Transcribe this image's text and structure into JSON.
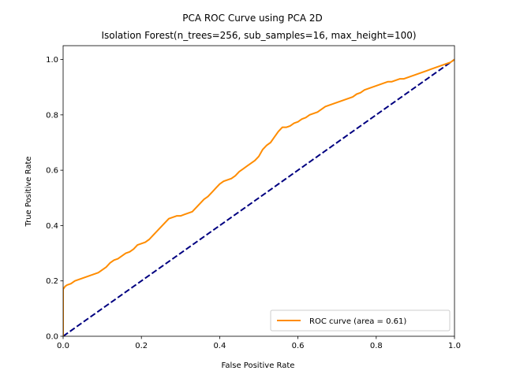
{
  "chart_data": {
    "type": "line",
    "title": "PCA ROC Curve using PCA 2D",
    "subtitle": "Isolation Forest(n_trees=256, sub_samples=16, max_height=100)",
    "xlabel": "False Positive Rate",
    "ylabel": "True Positive Rate",
    "xlim": [
      0,
      1
    ],
    "ylim": [
      0,
      1.05
    ],
    "xticks": [
      "0.0",
      "0.2",
      "0.4",
      "0.6",
      "0.8",
      "1.0"
    ],
    "yticks": [
      "0.0",
      "0.2",
      "0.4",
      "0.6",
      "0.8",
      "1.0"
    ],
    "grid": false,
    "legend_position": "lower right",
    "series": [
      {
        "name": "ROC curve (area = 0.61)",
        "color": "#ff8c00",
        "style": "solid",
        "x": [
          0,
          0,
          0.005,
          0.01,
          0.02,
          0.03,
          0.04,
          0.05,
          0.06,
          0.07,
          0.08,
          0.09,
          0.1,
          0.11,
          0.12,
          0.13,
          0.14,
          0.15,
          0.16,
          0.17,
          0.18,
          0.19,
          0.2,
          0.21,
          0.22,
          0.23,
          0.24,
          0.25,
          0.26,
          0.27,
          0.28,
          0.29,
          0.3,
          0.31,
          0.32,
          0.33,
          0.34,
          0.35,
          0.36,
          0.37,
          0.38,
          0.39,
          0.4,
          0.41,
          0.42,
          0.43,
          0.44,
          0.45,
          0.46,
          0.47,
          0.48,
          0.49,
          0.5,
          0.51,
          0.52,
          0.53,
          0.54,
          0.55,
          0.56,
          0.57,
          0.58,
          0.59,
          0.6,
          0.61,
          0.62,
          0.63,
          0.64,
          0.65,
          0.66,
          0.67,
          0.68,
          0.69,
          0.7,
          0.71,
          0.72,
          0.73,
          0.74,
          0.75,
          0.76,
          0.77,
          0.78,
          0.79,
          0.8,
          0.81,
          0.82,
          0.83,
          0.84,
          0.85,
          0.86,
          0.87,
          0.88,
          0.89,
          0.9,
          0.91,
          0.92,
          0.93,
          0.94,
          0.95,
          0.96,
          0.97,
          0.98,
          0.99,
          1.0
        ],
        "y": [
          0,
          0.17,
          0.18,
          0.185,
          0.19,
          0.2,
          0.205,
          0.21,
          0.215,
          0.22,
          0.225,
          0.23,
          0.24,
          0.25,
          0.265,
          0.275,
          0.28,
          0.29,
          0.3,
          0.305,
          0.315,
          0.33,
          0.335,
          0.34,
          0.35,
          0.365,
          0.38,
          0.395,
          0.41,
          0.425,
          0.43,
          0.435,
          0.435,
          0.44,
          0.445,
          0.45,
          0.465,
          0.48,
          0.495,
          0.505,
          0.52,
          0.535,
          0.55,
          0.56,
          0.565,
          0.57,
          0.58,
          0.595,
          0.605,
          0.615,
          0.625,
          0.635,
          0.65,
          0.675,
          0.69,
          0.7,
          0.72,
          0.74,
          0.755,
          0.755,
          0.76,
          0.77,
          0.775,
          0.785,
          0.79,
          0.8,
          0.805,
          0.81,
          0.82,
          0.83,
          0.835,
          0.84,
          0.845,
          0.85,
          0.855,
          0.86,
          0.865,
          0.875,
          0.88,
          0.89,
          0.895,
          0.9,
          0.905,
          0.91,
          0.915,
          0.92,
          0.92,
          0.925,
          0.93,
          0.93,
          0.935,
          0.94,
          0.945,
          0.95,
          0.955,
          0.96,
          0.965,
          0.97,
          0.975,
          0.98,
          0.985,
          0.99,
          1.0
        ]
      },
      {
        "name": "",
        "color": "#000080",
        "style": "dashed",
        "x": [
          0,
          1
        ],
        "y": [
          0,
          1
        ]
      }
    ]
  }
}
